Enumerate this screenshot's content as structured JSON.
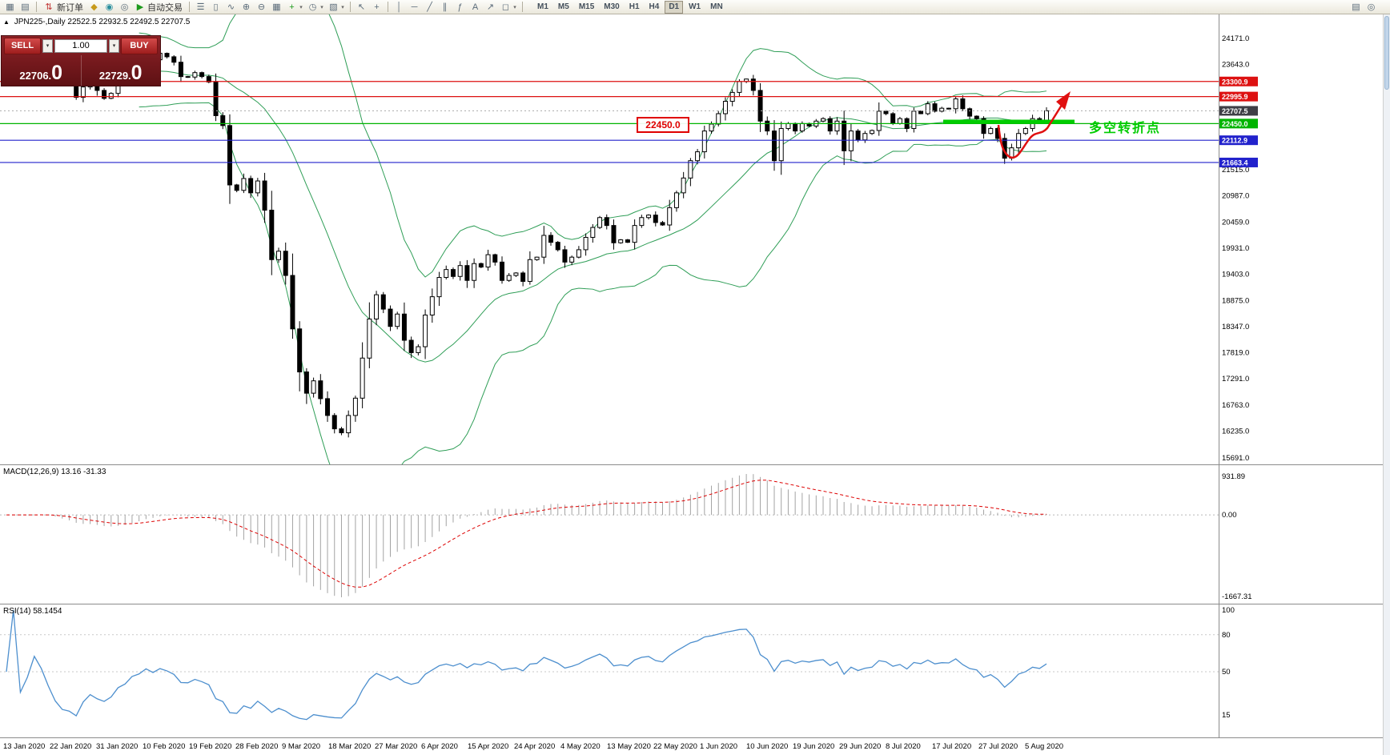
{
  "toolbar": {
    "new_order_label": "新订单",
    "auto_trading_label": "自动交易",
    "timeframes": [
      "M1",
      "M5",
      "M15",
      "M30",
      "H1",
      "H4",
      "D1",
      "W1",
      "MN"
    ],
    "active_timeframe": "D1",
    "icons": {
      "new_chart": "▦",
      "profiles": "▤",
      "new_order": "⇅",
      "favorites": "◆",
      "alerts": "◉",
      "community": "◎",
      "autotrade_play": "▶",
      "bar_chart": "☰",
      "candle_chart": "▯",
      "line_chart": "∿",
      "zoom_in": "⊕",
      "zoom_out": "⊖",
      "tile_windows": "▦",
      "add_indicator": "+",
      "period": "◷",
      "template": "▧",
      "cursor": "↖",
      "crosshair": "+",
      "vline": "│",
      "trendline": "╱",
      "hline": "─",
      "channel": "∥",
      "fibonacci": "ƒ",
      "text_tool": "A",
      "arrow_tool": "↗",
      "shapes": "◻",
      "dropdown": "▾",
      "page": "▤",
      "search": "◎"
    }
  },
  "chart": {
    "collapse_icon": "▲",
    "symbol_title": "JPN225-,Daily",
    "ohlc_readout": "22522.5 22932.5 22492.5 22707.5",
    "trade_panel": {
      "sell_label": "SELL",
      "buy_label": "BUY",
      "volume": "1.00",
      "dropdown_icon": "▾",
      "sell_price_small": "22706.",
      "sell_price_big": "0",
      "buy_price_small": "22729.",
      "buy_price_big": "0"
    },
    "annotations": {
      "level_callout": "22450.0",
      "turning_point_label": "多空转折点"
    },
    "price_axis": {
      "plain_labels": [
        {
          "text": "24171.0",
          "price": 24171
        },
        {
          "text": "23643.0",
          "price": 23643
        },
        {
          "text": "21515.0",
          "price": 21515
        },
        {
          "text": "20987.0",
          "price": 20987
        },
        {
          "text": "20459.0",
          "price": 20459
        },
        {
          "text": "19931.0",
          "price": 19931
        },
        {
          "text": "19403.0",
          "price": 19403
        },
        {
          "text": "18875.0",
          "price": 18875
        },
        {
          "text": "18347.0",
          "price": 18347
        },
        {
          "text": "17819.0",
          "price": 17819
        },
        {
          "text": "17291.0",
          "price": 17291
        },
        {
          "text": "16763.0",
          "price": 16763
        },
        {
          "text": "16235.0",
          "price": 16235
        },
        {
          "text": "15691.0",
          "price": 15691
        }
      ],
      "tags": [
        {
          "text": "23300.9",
          "price": 23300.9,
          "color": "#dd1111",
          "line": true
        },
        {
          "text": "22995.9",
          "price": 22995.9,
          "color": "#dd1111",
          "line": true
        },
        {
          "text": "22707.5",
          "price": 22707.5,
          "color": "#3f3f46",
          "line": false
        },
        {
          "text": "22450.0",
          "price": 22450.0,
          "color": "#00b400",
          "line": true
        },
        {
          "text": "22112.9",
          "price": 22112.9,
          "color": "#2222cc",
          "line": true
        },
        {
          "text": "21663.4",
          "price": 21663.4,
          "color": "#2222cc",
          "line": true
        }
      ]
    },
    "date_labels": [
      "13 Jan 2020",
      "22 Jan 2020",
      "31 Jan 2020",
      "10 Feb 2020",
      "19 Feb 2020",
      "28 Feb 2020",
      "9 Mar 2020",
      "18 Mar 2020",
      "27 Mar 2020",
      "6 Apr 2020",
      "15 Apr 2020",
      "24 Apr 2020",
      "4 May 2020",
      "13 May 2020",
      "22 May 2020",
      "1 Jun 2020",
      "10 Jun 2020",
      "19 Jun 2020",
      "29 Jun 2020",
      "8 Jul 2020",
      "17 Jul 2020",
      "27 Jul 2020",
      "5 Aug 2020"
    ]
  },
  "macd_panel": {
    "label": "MACD(12,26,9) 13.16 -31.33",
    "axis_max": "931.89",
    "axis_zero": "0.00",
    "axis_min": "-1667.31"
  },
  "rsi_panel": {
    "label": "RSI(14) 58.1454",
    "axis_labels": [
      {
        "text": "100",
        "value": 100
      },
      {
        "text": "80",
        "value": 80
      },
      {
        "text": "50",
        "value": 50
      },
      {
        "text": "15",
        "value": 15
      }
    ],
    "level_lines": [
      80,
      50
    ]
  },
  "chart_data": {
    "type": "candlestick",
    "symbol": "JPN225-",
    "timeframe": "Daily",
    "ohlc_current": {
      "open": 22522.5,
      "high": 22932.5,
      "low": 22492.5,
      "close": 22707.5
    },
    "bid": "22706.0",
    "ask": "22729.0",
    "y_range": [
      15691,
      24171
    ],
    "x_range_dates": [
      "13 Jan 2020",
      "7 Aug 2020"
    ],
    "closes": [
      23980,
      24040,
      23920,
      23960,
      24060,
      24000,
      23860,
      23620,
      23350,
      23270,
      22980,
      23190,
      23330,
      23120,
      22960,
      23060,
      23290,
      23390,
      23610,
      23690,
      23860,
      23740,
      23870,
      23800,
      23690,
      23400,
      23390,
      23480,
      23400,
      23290,
      22610,
      22410,
      21210,
      21100,
      21340,
      21050,
      21290,
      20700,
      19700,
      19870,
      19380,
      18300,
      17430,
      17000,
      17250,
      16890,
      16550,
      16280,
      16200,
      16550,
      16900,
      17710,
      18500,
      18990,
      18700,
      18350,
      18600,
      18070,
      17820,
      17940,
      18580,
      18950,
      19340,
      19500,
      19360,
      19580,
      19280,
      19620,
      19550,
      19800,
      19650,
      19280,
      19380,
      19430,
      19260,
      19700,
      19750,
      20190,
      20050,
      19900,
      19650,
      19750,
      19900,
      20150,
      20350,
      20550,
      20390,
      20040,
      20100,
      20050,
      20390,
      20550,
      20600,
      20450,
      20400,
      20750,
      21050,
      21350,
      21700,
      21880,
      22300,
      22440,
      22650,
      22900,
      23080,
      23300,
      23350,
      23120,
      22500,
      22300,
      21700,
      22350,
      22450,
      22300,
      22450,
      22400,
      22500,
      22550,
      22300,
      22500,
      21900,
      22300,
      22120,
      22250,
      22310,
      22700,
      22650,
      22450,
      22550,
      22350,
      22700,
      22650,
      22850,
      22700,
      22760,
      22750,
      22950,
      22750,
      22600,
      22550,
      22250,
      22350,
      22150,
      21750,
      21960,
      22250,
      22350,
      22550,
      22500,
      22707.5
    ],
    "overlays": {
      "bollinger_period": 20,
      "bollinger_dev": 2,
      "horizontal_lines": [
        23300.9,
        22995.9,
        22450.0,
        22112.9,
        21663.4
      ]
    },
    "indicators": [
      {
        "name": "MACD",
        "params": [
          12,
          26,
          9
        ],
        "current_values": [
          13.16,
          -31.33
        ],
        "axis_range": [
          -1667.31,
          931.89
        ]
      },
      {
        "name": "RSI",
        "params": [
          14
        ],
        "current_value": 58.1454
      }
    ]
  }
}
